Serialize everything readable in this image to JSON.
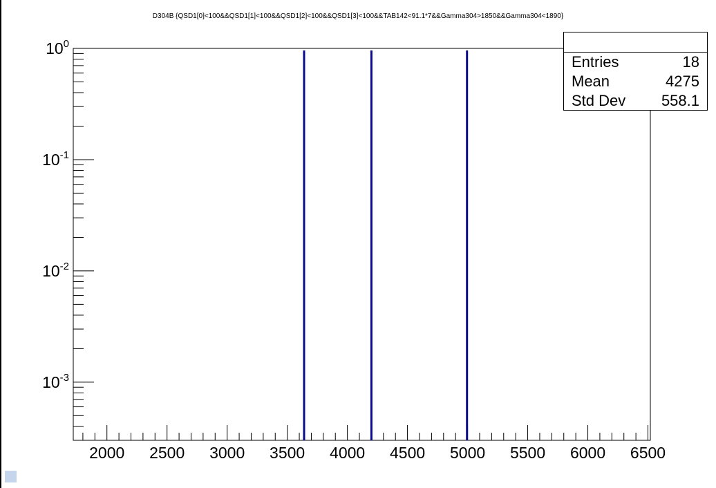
{
  "chart_data": {
    "type": "bar",
    "title": "D304B {QSD1[0]<100&&QSD1[1]<100&&QSD1[2]<100&&QSD1[3]<100&&TAB142<91.1*7&&Gamma304>1850&&Gamma304<1890}",
    "xlabel": "",
    "ylabel": "",
    "xlim": [
      1720,
      6520
    ],
    "ylim": [
      0.0003,
      1
    ],
    "y_scale": "log",
    "x_ticks": [
      "2000",
      "2500",
      "3000",
      "3500",
      "4000",
      "4500",
      "5000",
      "5500",
      "6000",
      "6500"
    ],
    "y_ticks": [
      {
        "base": "10",
        "exp": "0",
        "value": 1
      },
      {
        "base": "10",
        "exp": "-1",
        "value": 0.1
      },
      {
        "base": "10",
        "exp": "-2",
        "value": 0.01
      },
      {
        "base": "10",
        "exp": "-3",
        "value": 0.001
      }
    ],
    "series": [
      {
        "x": [
          3640,
          4200,
          4995
        ],
        "values": [
          1,
          1,
          1
        ],
        "color": "#0a0a8c"
      }
    ],
    "grid": false
  },
  "stats": {
    "rows": [
      {
        "key": "Entries",
        "value": "18"
      },
      {
        "key": "Mean",
        "value": "4275"
      },
      {
        "key": "Std Dev",
        "value": "558.1"
      }
    ]
  },
  "colors": {
    "histogram": "#0a0a8c",
    "axis": "#000000",
    "corner_marker": "#c5d6ec"
  }
}
